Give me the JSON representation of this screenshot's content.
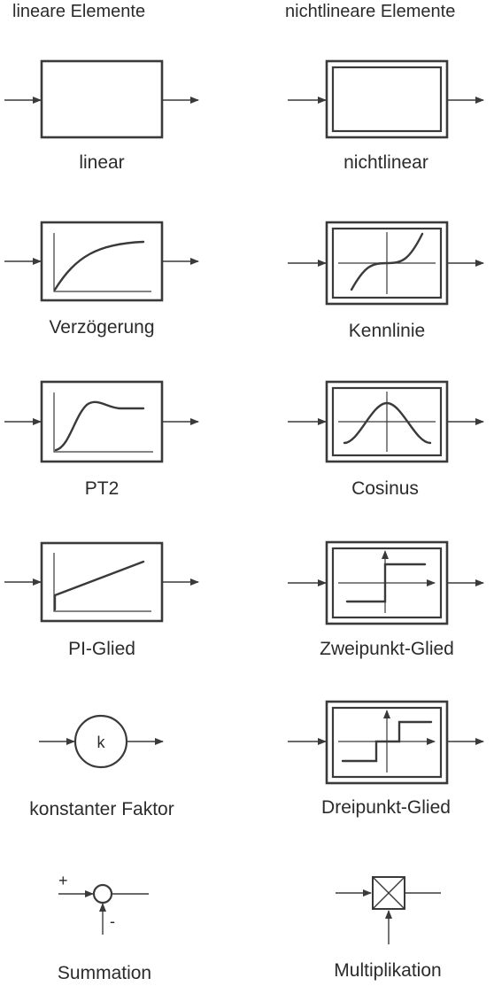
{
  "headers": {
    "linear": "lineare Elemente",
    "nonlinear": "nichtlineare Elemente"
  },
  "labels": {
    "linear": "linear",
    "nonlinear": "nichtlinear",
    "delay": "Verzögerung",
    "characteristic": "Kennlinie",
    "pt2": "PT2",
    "cosine": "Cosinus",
    "pi": "PI-Glied",
    "two_point": "Zweipunkt-Glied",
    "const_factor": "konstanter Faktor",
    "three_point": "Dreipunkt-Glied",
    "summation": "Summation",
    "multiplication": "Multiplikation"
  },
  "symbols": {
    "factor": "k",
    "plus": "+",
    "minus": "-"
  }
}
